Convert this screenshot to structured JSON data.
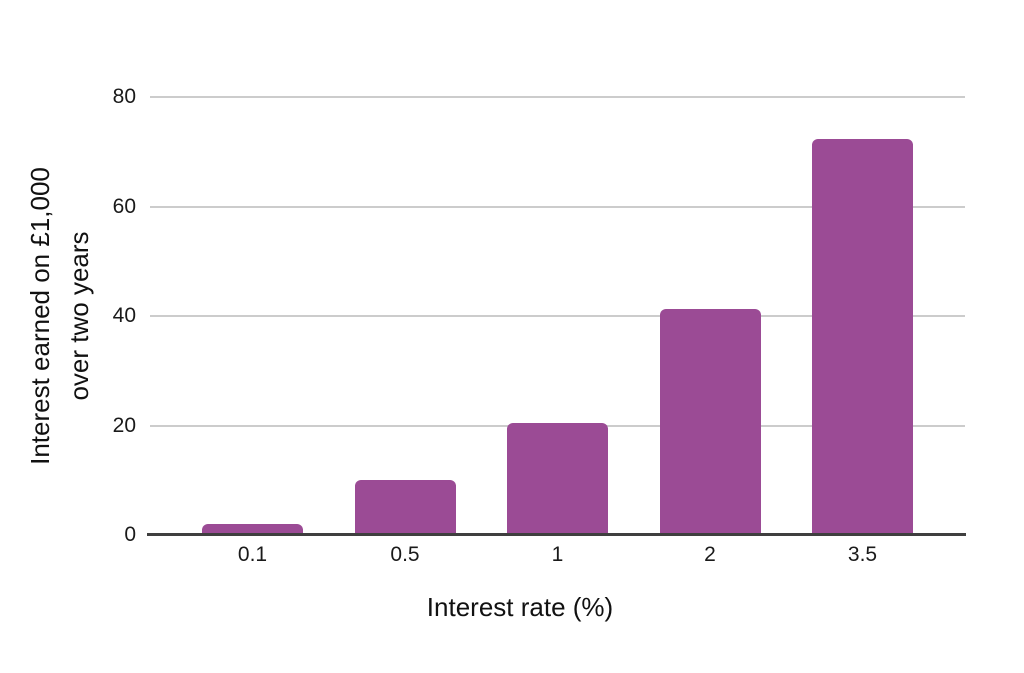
{
  "chart_data": {
    "type": "bar",
    "title": "",
    "categories": [
      "0.1",
      "0.5",
      "1",
      "2",
      "3.5"
    ],
    "values": [
      2,
      10,
      20.4,
      41.3,
      72.4
    ],
    "xlabel": "Interest rate (%)",
    "ylabel": "Interest earned on £1,000 over two years",
    "ylabel_lines": [
      "Interest earned on £1,000",
      "over two years"
    ],
    "yticks": [
      0,
      20,
      40,
      60,
      80
    ],
    "ylim": [
      0,
      80
    ],
    "grid": "horizontal gridlines at y ticks, no vertical gridlines",
    "legend": "none",
    "colors": {
      "bar": "#9b4b95",
      "gridline": "#cccccc",
      "axis_line": "#3f3f3f",
      "text": "#1a1a1a",
      "background": "#ffffff"
    }
  }
}
